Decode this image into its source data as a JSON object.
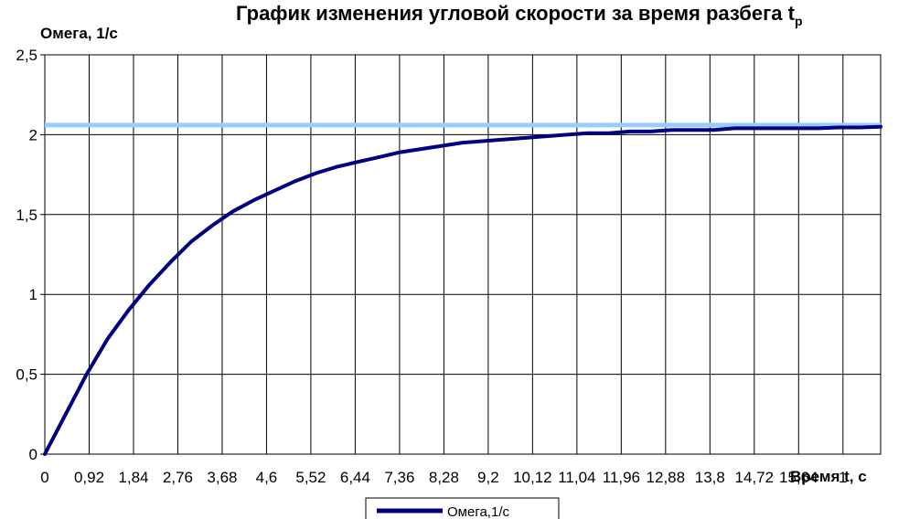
{
  "chart_data": {
    "type": "line",
    "title": "График изменения угловой скорости за время разбега t",
    "title_subscript": "p",
    "ylabel": "Омега, 1/с",
    "xlabel": "Время  t,  с",
    "ylim": [
      0,
      2.5
    ],
    "yticks": [
      "0",
      "0,5",
      "1",
      "1,5",
      "2",
      "2,5"
    ],
    "yticks_values": [
      0,
      0.5,
      1,
      1.5,
      2,
      2.5
    ],
    "xticks": [
      "0",
      "0,92",
      "1,84",
      "2,76",
      "3,68",
      "4,6",
      "5,52",
      "6,44",
      "7,36",
      "8,28",
      "9,2",
      "10,12",
      "11,04",
      "11,96",
      "12,88",
      "13,8",
      "14,72",
      "15,64",
      "1"
    ],
    "xlim": [
      0,
      18.4
    ],
    "grid": true,
    "legend_position": "bottom",
    "series": [
      {
        "name": "Омега,1/с",
        "color": "#000080",
        "x": [
          0,
          0.46,
          0.92,
          1.38,
          1.84,
          2.3,
          2.76,
          3.22,
          3.68,
          4.14,
          4.6,
          5.06,
          5.52,
          5.98,
          6.44,
          6.9,
          7.36,
          7.82,
          8.28,
          8.74,
          9.2,
          9.66,
          10.12,
          10.58,
          11.04,
          11.5,
          11.96,
          12.42,
          12.88,
          13.34,
          13.8,
          14.26,
          14.72,
          15.18,
          15.64,
          16.1,
          16.56,
          17.02,
          17.48,
          17.94,
          18.4
        ],
        "values": [
          0,
          0.25,
          0.5,
          0.72,
          0.9,
          1.06,
          1.2,
          1.33,
          1.43,
          1.52,
          1.59,
          1.65,
          1.71,
          1.76,
          1.8,
          1.83,
          1.86,
          1.89,
          1.91,
          1.93,
          1.95,
          1.96,
          1.97,
          1.98,
          1.99,
          2.0,
          2.01,
          2.01,
          2.02,
          2.02,
          2.03,
          2.03,
          2.03,
          2.04,
          2.04,
          2.04,
          2.04,
          2.04,
          2.045,
          2.045,
          2.05
        ]
      }
    ],
    "reference_line": {
      "value": 2.06,
      "color": "#99ccff"
    }
  }
}
